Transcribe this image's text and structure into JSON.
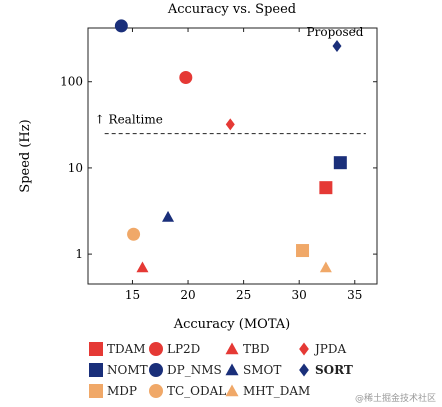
{
  "chart_data": {
    "type": "scatter",
    "title": "Accuracy vs. Speed",
    "xlabel": "Accuracy (MOTA)",
    "ylabel": "Speed (Hz)",
    "xlim": [
      11,
      37
    ],
    "ylim": [
      0.45,
      420
    ],
    "yscale": "log",
    "xticks": [
      15,
      20,
      25,
      30,
      35
    ],
    "yticks": [
      1,
      10,
      100
    ],
    "grid": false,
    "legend_position": "bottom",
    "realtime_line": {
      "y": 25,
      "x_from": 12.5,
      "x_to": 36,
      "label": "↑ Realtime"
    },
    "annotations": [
      {
        "text": "Proposed"
      }
    ],
    "series": [
      {
        "name": "TDAM",
        "marker": "square",
        "color": "#e53935",
        "x": 32.4,
        "y": 5.9
      },
      {
        "name": "LP2D",
        "marker": "circle",
        "color": "#e53935",
        "x": 19.8,
        "y": 112
      },
      {
        "name": "TBD",
        "marker": "triangle",
        "color": "#e53935",
        "x": 15.9,
        "y": 0.7
      },
      {
        "name": "JPDA",
        "marker": "diamond",
        "color": "#e53935",
        "x": 23.8,
        "y": 32
      },
      {
        "name": "NOMT",
        "marker": "square",
        "color": "#1a2f7a",
        "x": 33.7,
        "y": 11.5
      },
      {
        "name": "DP_NMS",
        "marker": "circle",
        "color": "#1a2f7a",
        "x": 14.0,
        "y": 444
      },
      {
        "name": "SMOT",
        "marker": "triangle",
        "color": "#1a2f7a",
        "x": 18.2,
        "y": 2.7
      },
      {
        "name": "SORT",
        "marker": "diamond",
        "color": "#1a2f7a",
        "x": 33.4,
        "y": 260,
        "bold": true
      },
      {
        "name": "MDP",
        "marker": "square",
        "color": "#f0a868",
        "x": 30.3,
        "y": 1.1
      },
      {
        "name": "TC_ODAL",
        "marker": "circle",
        "color": "#f0a868",
        "x": 15.1,
        "y": 1.7
      },
      {
        "name": "MHT_DAM",
        "marker": "triangle",
        "color": "#f0a868",
        "x": 32.4,
        "y": 0.7
      }
    ]
  },
  "legend": {
    "rows": [
      [
        "TDAM",
        "LP2D",
        "TBD",
        "JPDA"
      ],
      [
        "NOMT",
        "DP_NMS",
        "SMOT",
        "SORT"
      ],
      [
        "MDP",
        "TC_ODAL",
        "MHT_DAM"
      ]
    ]
  },
  "watermark": "@稀土掘金技术社区"
}
